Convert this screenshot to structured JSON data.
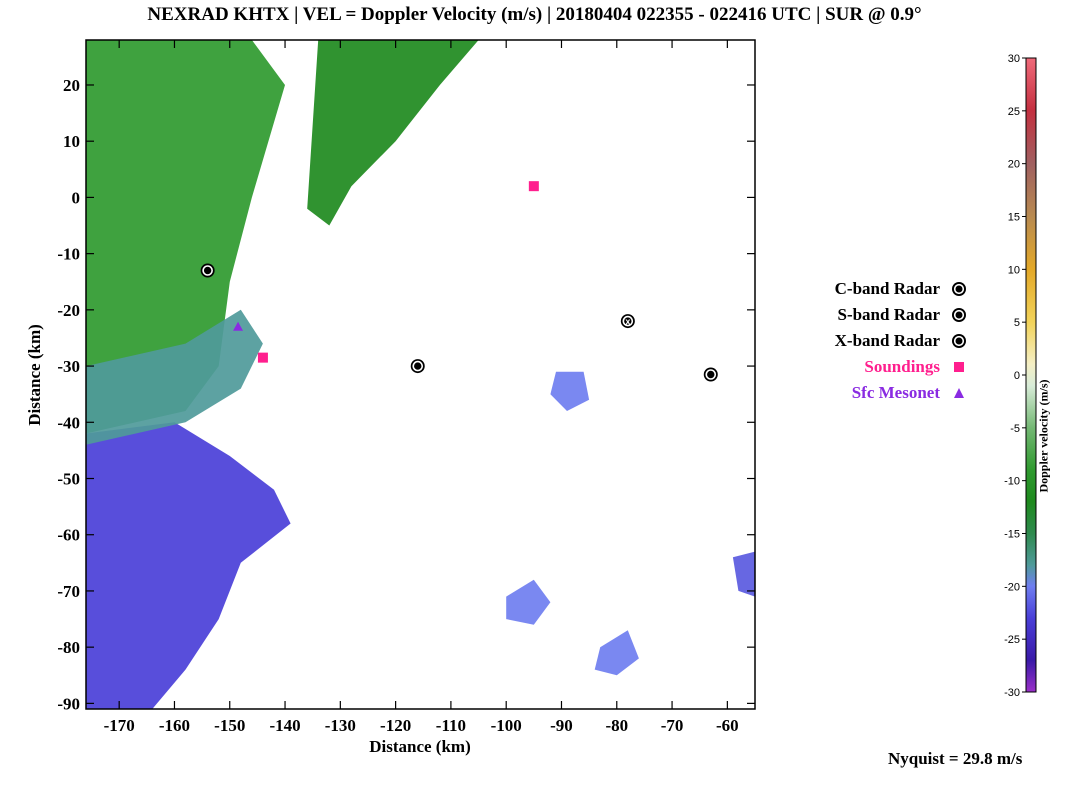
{
  "title": "NEXRAD KHTX | VEL = Doppler Velocity (m/s) | 20180404 022355 - 022416 UTC | SUR @ 0.9°",
  "nyquist_text": "Nyquist = 29.8 m/s",
  "legend": [
    {
      "label": "C-band Radar",
      "symbol": "C",
      "color": "#000000"
    },
    {
      "label": "S-band Radar",
      "symbol": "S",
      "color": "#000000"
    },
    {
      "label": "X-band Radar",
      "symbol": "X",
      "color": "#000000"
    },
    {
      "label": "Soundings",
      "symbol": "square",
      "color": "#ff1f8e"
    },
    {
      "label": "Sfc Mesonet",
      "symbol": "triangle",
      "color": "#8a2be2"
    }
  ],
  "chart_data": {
    "type": "heatmap",
    "xlabel": "Distance (km)",
    "ylabel": "Distance (km)",
    "xlim": [
      -176,
      -55
    ],
    "ylim": [
      -91,
      28
    ],
    "xticks": [
      -170,
      -160,
      -150,
      -140,
      -130,
      -120,
      -110,
      -100,
      -90,
      -80,
      -70,
      -60
    ],
    "yticks": [
      20,
      10,
      0,
      -10,
      -20,
      -30,
      -40,
      -50,
      -60,
      -70,
      -80,
      -90
    ],
    "colorbar": {
      "label": "Doppler velocity (m/s)",
      "range": [
        -30,
        30
      ],
      "ticks": [
        30,
        25,
        20,
        15,
        10,
        5,
        0,
        -5,
        -10,
        -15,
        -20,
        -25,
        -30
      ],
      "stops": [
        {
          "v": -30,
          "c": "#9b30c8"
        },
        {
          "v": -27,
          "c": "#3a1aa8"
        },
        {
          "v": -23,
          "c": "#4a3fd8"
        },
        {
          "v": -20,
          "c": "#6f7ef0"
        },
        {
          "v": -18,
          "c": "#4f9a9a"
        },
        {
          "v": -15,
          "c": "#2e8a4e"
        },
        {
          "v": -12,
          "c": "#1e8a1e"
        },
        {
          "v": -9,
          "c": "#2f9a2f"
        },
        {
          "v": -5,
          "c": "#74b874"
        },
        {
          "v": -1,
          "c": "#d8ecd8"
        },
        {
          "v": 1,
          "c": "#f5efc5"
        },
        {
          "v": 5,
          "c": "#f2d35a"
        },
        {
          "v": 10,
          "c": "#e3a828"
        },
        {
          "v": 15,
          "c": "#b88a50"
        },
        {
          "v": 20,
          "c": "#a06060"
        },
        {
          "v": 25,
          "c": "#c43040"
        },
        {
          "v": 30,
          "c": "#f06a7a"
        }
      ]
    },
    "regions": [
      {
        "name": "inbound-green",
        "velocity": -10,
        "color": "#2f9a2f",
        "points": [
          [
            -176,
            28
          ],
          [
            -146,
            28
          ],
          [
            -140,
            20
          ],
          [
            -146,
            0
          ],
          [
            -150,
            -15
          ],
          [
            -152,
            -30
          ],
          [
            -158,
            -38
          ],
          [
            -176,
            -42
          ]
        ]
      },
      {
        "name": "inbound-green-band",
        "velocity": -12,
        "color": "#1e8a1e",
        "points": [
          [
            -134,
            28
          ],
          [
            -105,
            28
          ],
          [
            -112,
            20
          ],
          [
            -120,
            10
          ],
          [
            -128,
            2
          ],
          [
            -132,
            -5
          ],
          [
            -136,
            -2
          ]
        ]
      },
      {
        "name": "inbound-blue",
        "velocity": -24,
        "color": "#4a3fd8",
        "points": [
          [
            -176,
            -42
          ],
          [
            -160,
            -40
          ],
          [
            -150,
            -46
          ],
          [
            -142,
            -52
          ],
          [
            -139,
            -58
          ],
          [
            -148,
            -65
          ],
          [
            -152,
            -75
          ],
          [
            -158,
            -84
          ],
          [
            -164,
            -91
          ],
          [
            -176,
            -91
          ]
        ]
      },
      {
        "name": "transition-teal",
        "velocity": -18,
        "color": "#4f9a9a",
        "points": [
          [
            -176,
            -30
          ],
          [
            -158,
            -26
          ],
          [
            -148,
            -20
          ],
          [
            -144,
            -26
          ],
          [
            -148,
            -34
          ],
          [
            -158,
            -40
          ],
          [
            -176,
            -44
          ]
        ]
      },
      {
        "name": "blob-east",
        "velocity": -21,
        "color": "#6f7ef0",
        "points": [
          [
            -91,
            -31
          ],
          [
            -86,
            -31
          ],
          [
            -85,
            -36
          ],
          [
            -89,
            -38
          ],
          [
            -92,
            -35
          ]
        ]
      },
      {
        "name": "blob-south-1",
        "velocity": -20,
        "color": "#6f7ef0",
        "points": [
          [
            -100,
            -71
          ],
          [
            -95,
            -68
          ],
          [
            -92,
            -72
          ],
          [
            -95,
            -76
          ],
          [
            -100,
            -75
          ]
        ]
      },
      {
        "name": "blob-south-2",
        "velocity": -20,
        "color": "#6f7ef0",
        "points": [
          [
            -83,
            -80
          ],
          [
            -78,
            -77
          ],
          [
            -76,
            -82
          ],
          [
            -80,
            -85
          ],
          [
            -84,
            -84
          ]
        ]
      },
      {
        "name": "blob-se",
        "velocity": -22,
        "color": "#5a5ae0",
        "points": [
          [
            -59,
            -64
          ],
          [
            -55,
            -63
          ],
          [
            -55,
            -71
          ],
          [
            -58,
            -70
          ]
        ]
      }
    ],
    "markers": [
      {
        "type": "C",
        "x": -154,
        "y": -13
      },
      {
        "type": "C",
        "x": -116,
        "y": -30
      },
      {
        "type": "C",
        "x": -63,
        "y": -31.5
      },
      {
        "type": "X",
        "x": -78,
        "y": -22
      },
      {
        "type": "square",
        "x": -95,
        "y": 2
      },
      {
        "type": "square",
        "x": -144,
        "y": -28.5
      },
      {
        "type": "triangle",
        "x": -148.5,
        "y": -23
      }
    ]
  }
}
